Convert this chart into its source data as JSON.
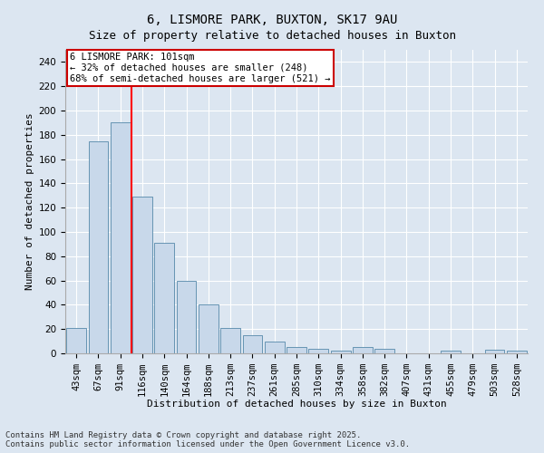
{
  "title": "6, LISMORE PARK, BUXTON, SK17 9AU",
  "subtitle": "Size of property relative to detached houses in Buxton",
  "xlabel": "Distribution of detached houses by size in Buxton",
  "ylabel": "Number of detached properties",
  "categories": [
    "43sqm",
    "67sqm",
    "91sqm",
    "116sqm",
    "140sqm",
    "164sqm",
    "188sqm",
    "213sqm",
    "237sqm",
    "261sqm",
    "285sqm",
    "310sqm",
    "334sqm",
    "358sqm",
    "382sqm",
    "407sqm",
    "431sqm",
    "455sqm",
    "479sqm",
    "503sqm",
    "528sqm"
  ],
  "values": [
    21,
    175,
    190,
    129,
    91,
    60,
    40,
    21,
    15,
    10,
    5,
    4,
    2,
    5,
    4,
    0,
    0,
    2,
    0,
    3,
    2
  ],
  "bar_color": "#c8d8ea",
  "bar_edge_color": "#5588aa",
  "redline_x": 2.5,
  "annotation_text": "6 LISMORE PARK: 101sqm\n← 32% of detached houses are smaller (248)\n68% of semi-detached houses are larger (521) →",
  "annotation_box_color": "#ffffff",
  "annotation_box_edge_color": "#cc0000",
  "ylim": [
    0,
    250
  ],
  "yticks": [
    0,
    20,
    40,
    60,
    80,
    100,
    120,
    140,
    160,
    180,
    200,
    220,
    240
  ],
  "background_color": "#dce6f1",
  "plot_background_color": "#dce6f1",
  "title_fontsize": 10,
  "axis_label_fontsize": 8,
  "tick_fontsize": 7.5,
  "annot_fontsize": 7.5,
  "footer_text": "Contains HM Land Registry data © Crown copyright and database right 2025.\nContains public sector information licensed under the Open Government Licence v3.0.",
  "footer_fontsize": 6.5
}
